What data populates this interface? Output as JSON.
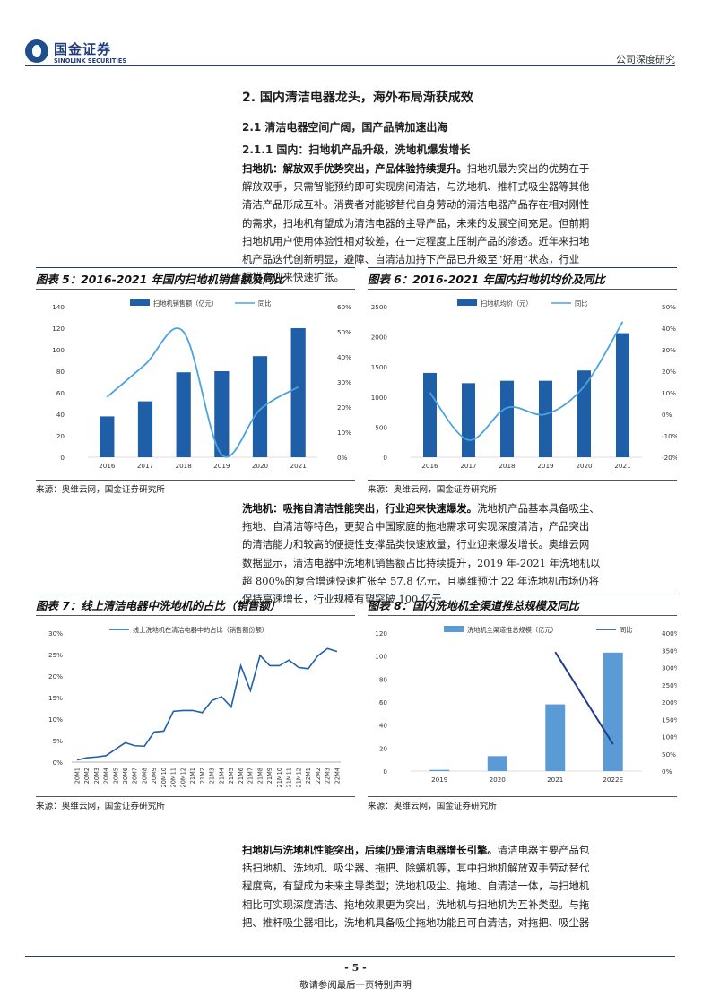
{
  "header": {
    "logo_cn": "国金证券",
    "logo_en": "SINOLINK SECURITIES",
    "doc_type": "公司深度研究"
  },
  "section": {
    "h1": "2. 国内清洁电器龙头，海外布局渐获成效",
    "h2": "2.1 清洁电器空间广阔，国产品牌加速出海",
    "h3": "2.1.1 国内：扫地机产品升级，洗地机爆发增长"
  },
  "paragraphs": {
    "p1_lead": "扫地机：解放双手优势突出，产品体验持续提升。",
    "p1_lines": [
      "扫地机最为突出的优势在于",
      "解放双手，只需智能预约即可实现房间清洁，与洗地机、推杆式吸尘器等其他",
      "清洁产品形成互补。消费者对能够替代自身劳动的清洁电器产品存在相对刚性",
      "的需求，扫地机有望成为清洁电器的主导产品，未来的发展空间充足。但前期",
      "扫地机用户使用体验性相对较差，在一定程度上压制产品的渗透。近年来扫地",
      "机产品迭代创新明显，避障、自清洁加持下产品已升级至“好用”状态，行业",
      "规模亦迎来快速扩张。"
    ],
    "p2_lead": "洗地机：吸拖自清洁性能突出，行业迎来快速爆发。",
    "p2_lines": [
      "洗地机产品基本具备吸尘、",
      "拖地、自清洁等特色，更契合中国家庭的拖地需求可实现深度清洁，产品突出",
      "的清洁能力和较高的便捷性支撑品类快速放量，行业迎来爆发增长。奥维云网",
      "数据显示，清洁电器中洗地机销售额占比持续提升，2019 年-2021 年洗地机以",
      "超 800%的复合增速快速扩张至 57.8 亿元，且奥维预计 22 年洗地机市场仍将",
      "保持高速增长，行业规模有望突破 100 亿元。"
    ],
    "p3_lead": "扫地机与洗地机性能突出，后续仍是清洁电器增长引擎。",
    "p3_lines": [
      "清洁电器主要产品包",
      "括扫地机、洗地机、吸尘器、拖把、除螨机等，其中扫地机解放双手劳动替代",
      "程度高，有望成为未来主导类型；洗地机吸尘、拖地、自清洁一体，与扫地机",
      "相比可实现深度清洁、拖地效果更为突出，洗地机与扫地机为互补类型。与拖",
      "把、推杆吸尘器相比，洗地机具备吸尘拖地功能且可自清洁，对拖把、吸尘器"
    ]
  },
  "figures": {
    "fig5_title": "图表 5：2016-2021 年国内扫地机销售额及同比",
    "fig6_title": "图表 6：2016-2021 年国内扫地机均价及同比",
    "fig7_title": "图表 7：线上清洁电器中洗地机的占比（销售额）",
    "fig8_title": "图表 8：国内洗地机全渠道推总规模及同比",
    "source": "来源：奥维云网，国金证券研究所"
  },
  "chart_data": [
    {
      "id": "fig5",
      "type": "bar",
      "categories": [
        "2016",
        "2017",
        "2018",
        "2019",
        "2020",
        "2021"
      ],
      "series": [
        {
          "name": "扫地机销售额（亿元）",
          "type": "bar",
          "axis": "left",
          "values": [
            38,
            52,
            79,
            80,
            94,
            120
          ]
        },
        {
          "name": "同比",
          "type": "line",
          "axis": "right",
          "values": [
            24,
            37,
            50,
            1,
            19,
            28
          ]
        }
      ],
      "y_left": {
        "ticks": [
          0,
          20,
          40,
          60,
          80,
          100,
          120,
          140
        ],
        "lim": [
          0,
          140
        ]
      },
      "y_right": {
        "ticks": [
          "0%",
          "10%",
          "20%",
          "30%",
          "40%",
          "50%",
          "60%"
        ],
        "lim": [
          0,
          60
        ]
      },
      "colors": {
        "bar": "#1f5fa8",
        "line": "#4aa3df"
      }
    },
    {
      "id": "fig6",
      "type": "bar",
      "categories": [
        "2016",
        "2017",
        "2018",
        "2019",
        "2020",
        "2021"
      ],
      "series": [
        {
          "name": "扫地机均价（元）",
          "type": "bar",
          "axis": "left",
          "values": [
            1400,
            1230,
            1270,
            1270,
            1440,
            2060
          ]
        },
        {
          "name": "同比",
          "type": "line",
          "axis": "right",
          "values": [
            10,
            -12,
            3,
            0,
            13,
            43
          ]
        }
      ],
      "y_left": {
        "ticks": [
          0,
          500,
          1000,
          1500,
          2000,
          2500
        ],
        "lim": [
          0,
          2500
        ]
      },
      "y_right": {
        "ticks": [
          "-20%",
          "-10%",
          "0%",
          "10%",
          "20%",
          "30%",
          "40%",
          "50%"
        ],
        "lim": [
          -20,
          50
        ]
      },
      "colors": {
        "bar": "#1f5fa8",
        "line": "#4aa3df"
      }
    },
    {
      "id": "fig7",
      "type": "line",
      "categories": [
        "20M1",
        "20M2",
        "20M3",
        "20M4",
        "20M5",
        "20M6",
        "20M7",
        "20M8",
        "20M9",
        "20M10",
        "20M11",
        "20M12",
        "21M1",
        "21M2",
        "21M3",
        "21M4",
        "21M5",
        "21M6",
        "21M7",
        "21M8",
        "21M9",
        "21M10",
        "21M11",
        "21M12",
        "22M1",
        "22M2",
        "22M3",
        "22M4"
      ],
      "series": [
        {
          "name": "线上洗地机在清洁电器中的占比（销售额份额）",
          "values": [
            0.5,
            1.0,
            1.2,
            1.5,
            3.0,
            4.5,
            3.8,
            3.7,
            7.0,
            7.2,
            11.8,
            12.0,
            12.0,
            11.5,
            14.3,
            15.2,
            12.8,
            22.4,
            16.6,
            24.8,
            22.4,
            22.4,
            23.7,
            22.0,
            21.7,
            24.7,
            26.4,
            25.7
          ]
        }
      ],
      "y": {
        "ticks": [
          "0%",
          "5%",
          "10%",
          "15%",
          "20%",
          "25%",
          "30%"
        ],
        "lim": [
          0,
          30
        ]
      },
      "colors": {
        "line": "#1f5fa8"
      }
    },
    {
      "id": "fig8",
      "type": "bar",
      "categories": [
        "2019",
        "2020",
        "2021",
        "2022E"
      ],
      "series": [
        {
          "name": "洗地机全渠道推总规模（亿元）",
          "type": "bar",
          "axis": "left",
          "values": [
            1,
            13,
            58,
            103
          ]
        },
        {
          "name": "同比",
          "type": "line",
          "axis": "right",
          "values": [
            null,
            null,
            345,
            78
          ]
        }
      ],
      "y_left": {
        "ticks": [
          0,
          20,
          40,
          60,
          80,
          100,
          120
        ],
        "lim": [
          0,
          120
        ]
      },
      "y_right": {
        "ticks": [
          "0%",
          "50%",
          "100%",
          "150%",
          "200%",
          "250%",
          "300%",
          "350%",
          "400%"
        ],
        "lim": [
          0,
          400
        ]
      },
      "colors": {
        "bar": "#5b9bd5",
        "line": "#1f3d8a"
      }
    }
  ],
  "footer": {
    "page": "- 5 -",
    "note": "敬请参阅最后一页特别声明"
  }
}
